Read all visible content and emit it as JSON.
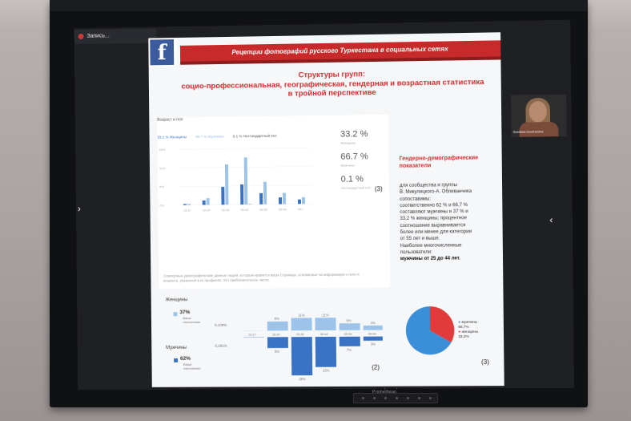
{
  "recorder": {
    "label": "Запись..."
  },
  "slide": {
    "header": "Рецепции фотографий русского Туркестана в социальных сетях",
    "title_lines": [
      "Структуры групп:",
      "социо-профессиональная, географическая, гендерная и возрастная статистика",
      "в тройной перспективе"
    ],
    "card": {
      "title": "Возраст и пол",
      "legend": [
        "33.2 % Женщины",
        "66.7 % Мужчины",
        "0.1 % Нестандартный пол"
      ],
      "stats": [
        "33.2 %",
        "66.7 %",
        "0.1 %"
      ],
      "stat_labels": [
        "Женщины",
        "Мужчины",
        "Нестандартный пол"
      ],
      "y_ticks": [
        "20%",
        "10%",
        "5%",
        "0%"
      ],
      "age_groups": [
        "13-17",
        "18-24",
        "25-34",
        "35-44",
        "45-54",
        "55-64",
        "65+"
      ],
      "marker": "(3)"
    },
    "footnote": "Совокупные демографические данные людей, которым нравится ваша Страница, основанные на информации о поле и возрасте, указанной в их профилях. Это приблизительное число.",
    "side": {
      "title": "Гендерно-демографические показатели",
      "body": [
        "для сообщества и группы",
        "В. Микулицкого-А. Обливанчика",
        "сопоставимы:",
        "соответственно 62 % и 66,7 %",
        "составляют мужчины и 37 % и",
        "33,2 % женщины; процентное",
        "соотношение выравнивается",
        "более или менее для категории",
        "от 55 лет и выше.",
        "Наиболее многочисленные",
        "пользователи:",
        "мужчины от 25 до 44 лет."
      ]
    },
    "population": {
      "women_label": "Женщины",
      "men_label": "Мужчины",
      "women_pct": "37%",
      "men_pct": "62%",
      "sub": "Ваши поклонники",
      "top_labels": [
        "8%",
        "11%",
        "11%",
        "6%",
        "4%",
        "2%"
      ],
      "bottom_labels": [
        "8%",
        "28%",
        "22%",
        "7%",
        "3%",
        "2%"
      ],
      "left_top": "0,106%",
      "left_bottom": "0,181%",
      "age_groups": [
        "13-17",
        "18-24",
        "25-34",
        "35-44",
        "45-54",
        "55-64",
        "65+"
      ],
      "marker": "(2)"
    },
    "pie": {
      "legend": [
        "мужчины",
        "66,7%",
        "женщины",
        "33,2%"
      ],
      "marker": "(3)"
    },
    "camera_name": "Svetlana Gorshenina"
  },
  "tv_brand": "Promethean",
  "chart_data": [
    {
      "type": "bar",
      "title": "Возраст и пол",
      "categories": [
        "13-17",
        "18-24",
        "25-34",
        "35-44",
        "45-54",
        "55-64",
        "65+"
      ],
      "series": [
        {
          "name": "Женщины",
          "values": [
            0.5,
            2,
            8,
            9,
            5,
            3,
            2
          ]
        },
        {
          "name": "Мужчины",
          "values": [
            0.5,
            3,
            18,
            21,
            10,
            5,
            3
          ]
        },
        {
          "name": "Нестандартный пол",
          "values": [
            0,
            0,
            0,
            0.1,
            0,
            0,
            0
          ]
        }
      ],
      "ylim": [
        0,
        25
      ]
    },
    {
      "type": "bar",
      "categories": [
        "13-17",
        "18-24",
        "25-34",
        "35-44",
        "45-54",
        "55-64",
        "65+"
      ],
      "series": [
        {
          "name": "Женщины",
          "values": [
            0.1,
            8,
            11,
            11,
            6,
            4,
            2
          ]
        },
        {
          "name": "Мужчины",
          "values": [
            0.2,
            8,
            28,
            22,
            7,
            3,
            2
          ]
        }
      ]
    },
    {
      "type": "pie",
      "categories": [
        "мужчины",
        "женщины"
      ],
      "values": [
        66.7,
        33.2
      ]
    }
  ],
  "colors": {
    "header_red": "#c62a2a",
    "women_light": "#9cc3ea",
    "men_dark": "#3a72c4",
    "pie_blue": "#3a8fd8",
    "pie_red": "#e23b3b"
  }
}
